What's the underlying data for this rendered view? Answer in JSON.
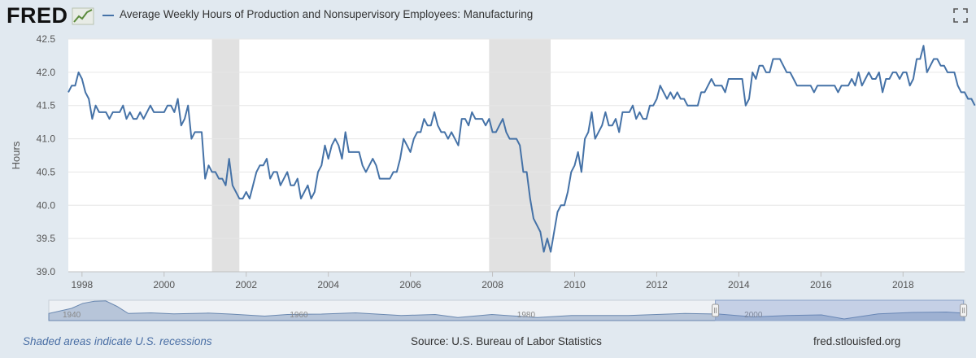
{
  "header": {
    "logo_text": "FRED",
    "logo_icon": "line-chart-icon",
    "series_title": "Average Weekly Hours of Production and Nonsupervisory Employees: Manufacturing",
    "expand_icon": "expand-icon",
    "series_color": "#4572a7"
  },
  "footer": {
    "recession_note": "Shaded areas indicate U.S. recessions",
    "source": "Source: U.S. Bureau of Labor Statistics",
    "site": "fred.stlouisfed.org"
  },
  "chart_data": {
    "type": "line",
    "title": "Average Weekly Hours of Production and Nonsupervisory Employees: Manufacturing",
    "xlabel": "",
    "ylabel": "Hours",
    "ylim": [
      39.0,
      42.5
    ],
    "xlim": [
      "1997-09-01",
      "2019-07-01"
    ],
    "yticks": [
      "39.0",
      "39.5",
      "40.0",
      "40.5",
      "41.0",
      "41.5",
      "42.0",
      "42.5"
    ],
    "xticks": [
      "1998",
      "2000",
      "2002",
      "2004",
      "2006",
      "2008",
      "2010",
      "2012",
      "2014",
      "2016",
      "2018"
    ],
    "grid": true,
    "recessions": [
      {
        "start": "2001-03-01",
        "end": "2001-11-01"
      },
      {
        "start": "2007-12-01",
        "end": "2009-06-01"
      }
    ],
    "series": [
      {
        "name": "Average Weekly Hours of Production and Nonsupervisory Employees: Manufacturing",
        "color": "#4572a7",
        "start": "1997-09",
        "frequency": "monthly",
        "values": [
          41.7,
          41.8,
          41.8,
          42.0,
          41.9,
          41.7,
          41.6,
          41.3,
          41.5,
          41.4,
          41.4,
          41.4,
          41.3,
          41.4,
          41.4,
          41.4,
          41.5,
          41.3,
          41.4,
          41.3,
          41.3,
          41.4,
          41.3,
          41.4,
          41.5,
          41.4,
          41.4,
          41.4,
          41.4,
          41.5,
          41.5,
          41.4,
          41.6,
          41.2,
          41.3,
          41.5,
          41.0,
          41.1,
          41.1,
          41.1,
          40.4,
          40.6,
          40.5,
          40.5,
          40.4,
          40.4,
          40.3,
          40.7,
          40.3,
          40.2,
          40.1,
          40.1,
          40.2,
          40.1,
          40.3,
          40.5,
          40.6,
          40.6,
          40.7,
          40.4,
          40.5,
          40.5,
          40.3,
          40.4,
          40.5,
          40.3,
          40.3,
          40.4,
          40.1,
          40.2,
          40.3,
          40.1,
          40.2,
          40.5,
          40.6,
          40.9,
          40.7,
          40.9,
          41.0,
          40.9,
          40.7,
          41.1,
          40.8,
          40.8,
          40.8,
          40.8,
          40.6,
          40.5,
          40.6,
          40.7,
          40.6,
          40.4,
          40.4,
          40.4,
          40.4,
          40.5,
          40.5,
          40.7,
          41.0,
          40.9,
          40.8,
          41.0,
          41.1,
          41.1,
          41.3,
          41.2,
          41.2,
          41.4,
          41.2,
          41.1,
          41.1,
          41.0,
          41.1,
          41.0,
          40.9,
          41.3,
          41.3,
          41.2,
          41.4,
          41.3,
          41.3,
          41.3,
          41.2,
          41.3,
          41.1,
          41.1,
          41.2,
          41.3,
          41.1,
          41.0,
          41.0,
          41.0,
          40.9,
          40.5,
          40.5,
          40.1,
          39.8,
          39.7,
          39.6,
          39.3,
          39.5,
          39.3,
          39.6,
          39.9,
          40.0,
          40.0,
          40.2,
          40.5,
          40.6,
          40.8,
          40.5,
          41.0,
          41.1,
          41.4,
          41.0,
          41.1,
          41.2,
          41.4,
          41.2,
          41.2,
          41.3,
          41.1,
          41.4,
          41.4,
          41.4,
          41.5,
          41.3,
          41.4,
          41.3,
          41.3,
          41.5,
          41.5,
          41.6,
          41.8,
          41.7,
          41.6,
          41.7,
          41.6,
          41.7,
          41.6,
          41.6,
          41.5,
          41.5,
          41.5,
          41.5,
          41.7,
          41.7,
          41.8,
          41.9,
          41.8,
          41.8,
          41.8,
          41.7,
          41.9,
          41.9,
          41.9,
          41.9,
          41.9,
          41.5,
          41.6,
          42.0,
          41.9,
          42.1,
          42.1,
          42.0,
          42.0,
          42.2,
          42.2,
          42.2,
          42.1,
          42.0,
          42.0,
          41.9,
          41.8,
          41.8,
          41.8,
          41.8,
          41.8,
          41.7,
          41.8,
          41.8,
          41.8,
          41.8,
          41.8,
          41.8,
          41.7,
          41.8,
          41.8,
          41.8,
          41.9,
          41.8,
          42.0,
          41.8,
          41.9,
          42.0,
          41.9,
          41.9,
          42.0,
          41.7,
          41.9,
          41.9,
          42.0,
          42.0,
          41.9,
          42.0,
          42.0,
          41.8,
          41.9,
          42.2,
          42.2,
          42.4,
          42.0,
          42.1,
          42.2,
          42.2,
          42.1,
          42.1,
          42.0,
          42.0,
          42.0,
          41.8,
          41.7,
          41.7,
          41.6,
          41.6,
          41.5
        ]
      }
    ],
    "navigator": {
      "start_label": "1940",
      "mid_labels": [
        "1960",
        "1980",
        "2000"
      ],
      "selected_range": [
        "1997-09-01",
        "2019-07-01"
      ]
    }
  }
}
